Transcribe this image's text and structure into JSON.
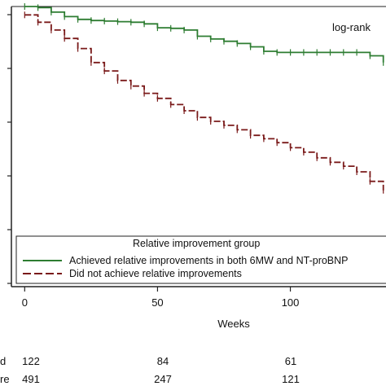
{
  "chart_data": {
    "type": "line",
    "title": "",
    "annotation": "log-rank",
    "xlabel": "Weeks",
    "ylabel": "",
    "x_ticks": [
      0,
      50,
      100
    ],
    "xlim": [
      -5,
      136
    ],
    "ylim": [
      0.5,
      1.0
    ],
    "grid": false,
    "legend": {
      "title": "Relative improvement group",
      "placement": "bottom-inside",
      "entries": [
        "Achieved relative improvements in both 6MW and NT-proBNP",
        "Did not achieve relative improvements"
      ]
    },
    "series": [
      {
        "name": "Achieved relative improvements in both 6MW and NT-proBNP",
        "color": "#2e7d32",
        "style": "solid",
        "x": [
          0,
          5,
          10,
          15,
          20,
          25,
          30,
          35,
          40,
          45,
          50,
          55,
          60,
          65,
          70,
          75,
          80,
          85,
          90,
          95,
          100,
          105,
          110,
          115,
          120,
          125,
          130,
          135
        ],
        "y": [
          1.0,
          0.998,
          0.99,
          0.982,
          0.977,
          0.975,
          0.974,
          0.973,
          0.972,
          0.969,
          0.962,
          0.961,
          0.958,
          0.947,
          0.942,
          0.938,
          0.934,
          0.928,
          0.92,
          0.918,
          0.918,
          0.918,
          0.918,
          0.918,
          0.918,
          0.918,
          0.912,
          0.9
        ]
      },
      {
        "name": "Did not achieve relative improvements",
        "color": "#7a1a1a",
        "style": "dashed",
        "x": [
          0,
          5,
          10,
          15,
          20,
          25,
          30,
          35,
          40,
          45,
          50,
          55,
          60,
          65,
          70,
          75,
          80,
          85,
          90,
          95,
          100,
          105,
          110,
          115,
          120,
          125,
          130,
          135
        ],
        "y": [
          0.985,
          0.972,
          0.958,
          0.943,
          0.925,
          0.9,
          0.885,
          0.868,
          0.858,
          0.845,
          0.836,
          0.825,
          0.814,
          0.802,
          0.795,
          0.788,
          0.78,
          0.77,
          0.764,
          0.757,
          0.748,
          0.74,
          0.73,
          0.722,
          0.715,
          0.705,
          0.688,
          0.672
        ]
      }
    ],
    "risk_table": {
      "row_labels": [
        "d",
        "re"
      ],
      "rows": [
        {
          "values": [
            "122",
            "84",
            "61"
          ]
        },
        {
          "values": [
            "491",
            "247",
            "121"
          ]
        }
      ]
    }
  }
}
